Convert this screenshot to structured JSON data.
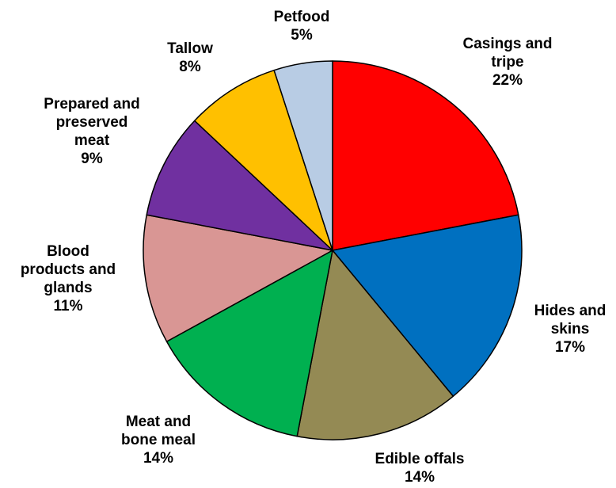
{
  "chart_data": {
    "type": "pie",
    "start_angle": "12 o'clock",
    "direction": "clockwise",
    "title": "",
    "legend": "none",
    "slices": [
      {
        "label": [
          "Casings and",
          "tripe"
        ],
        "value": 22,
        "value_label": "22%",
        "color": "#FF0000"
      },
      {
        "label": [
          "Hides and",
          "skins"
        ],
        "value": 17,
        "value_label": "17%",
        "color": "#0070C0"
      },
      {
        "label": [
          "Edible offals"
        ],
        "value": 14,
        "value_label": "14%",
        "color": "#948A54"
      },
      {
        "label": [
          "Meat and",
          "bone meal"
        ],
        "value": 14,
        "value_label": "14%",
        "color": "#00B050"
      },
      {
        "label": [
          "Blood",
          "products and",
          "glands"
        ],
        "value": 11,
        "value_label": "11%",
        "color": "#D99694"
      },
      {
        "label": [
          "Prepared and",
          "preserved",
          "meat"
        ],
        "value": 9,
        "value_label": "9%",
        "color": "#7030A0"
      },
      {
        "label": [
          "Tallow"
        ],
        "value": 8,
        "value_label": "8%",
        "color": "#FFC000"
      },
      {
        "label": [
          "Petfood"
        ],
        "value": 5,
        "value_label": "5%",
        "color": "#B8CCE4"
      }
    ]
  }
}
